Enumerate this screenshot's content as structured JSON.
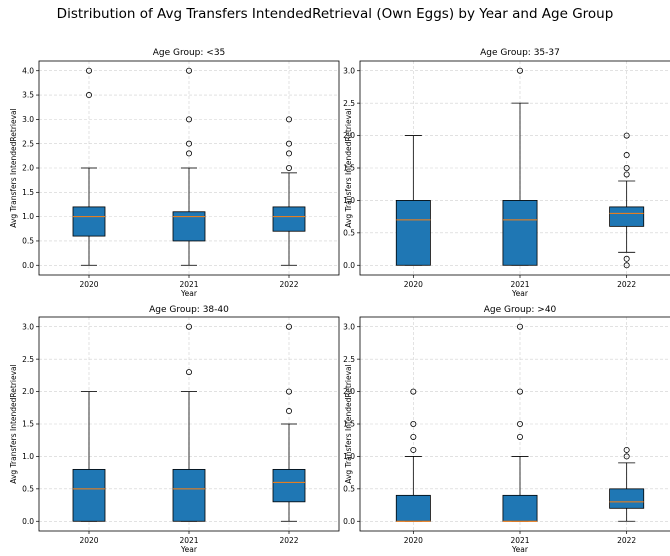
{
  "title": "Distribution of Avg Transfers IntendedRetrieval (Own Eggs) by Year and Age Group",
  "chart_data": [
    {
      "type": "box",
      "title": "Age Group: <35",
      "xlabel": "Year",
      "ylabel": "Avg Transfers IntendedRetrieval",
      "categories": [
        "2020",
        "2021",
        "2022"
      ],
      "ylim": [
        -0.2,
        4.2
      ],
      "yticks": [
        "0.0",
        "0.5",
        "1.0",
        "1.5",
        "2.0",
        "2.5",
        "3.0",
        "3.5",
        "4.0"
      ],
      "grid": true,
      "boxes": [
        {
          "whislo": 0.0,
          "q1": 0.6,
          "med": 1.0,
          "q3": 1.2,
          "whishi": 2.0,
          "fliers": [
            3.5,
            4.0
          ]
        },
        {
          "whislo": 0.0,
          "q1": 0.5,
          "med": 1.0,
          "q3": 1.1,
          "whishi": 2.0,
          "fliers": [
            2.3,
            2.5,
            3.0,
            4.0
          ]
        },
        {
          "whislo": 0.0,
          "q1": 0.7,
          "med": 1.0,
          "q3": 1.2,
          "whishi": 1.9,
          "fliers": [
            2.0,
            2.3,
            2.5,
            3.0
          ]
        }
      ]
    },
    {
      "type": "box",
      "title": "Age Group: 35-37",
      "xlabel": "Year",
      "ylabel": "Avg Transfers IntendedRetrieval",
      "categories": [
        "2020",
        "2021",
        "2022"
      ],
      "ylim": [
        -0.15,
        3.15
      ],
      "yticks": [
        "0.0",
        "0.5",
        "1.0",
        "1.5",
        "2.0",
        "2.5",
        "3.0"
      ],
      "grid": true,
      "boxes": [
        {
          "whislo": 0.0,
          "q1": 0.0,
          "med": 0.7,
          "q3": 1.0,
          "whishi": 2.0,
          "fliers": []
        },
        {
          "whislo": 0.0,
          "q1": 0.0,
          "med": 0.7,
          "q3": 1.0,
          "whishi": 2.5,
          "fliers": [
            3.0
          ]
        },
        {
          "whislo": 0.2,
          "q1": 0.6,
          "med": 0.8,
          "q3": 0.9,
          "whishi": 1.3,
          "fliers": [
            0.0,
            0.1,
            1.4,
            1.5,
            1.7,
            2.0
          ]
        }
      ]
    },
    {
      "type": "box",
      "title": "Age Group: 38-40",
      "xlabel": "Year",
      "ylabel": "Avg Transfers IntendedRetrieval",
      "categories": [
        "2020",
        "2021",
        "2022"
      ],
      "ylim": [
        -0.15,
        3.15
      ],
      "yticks": [
        "0.0",
        "0.5",
        "1.0",
        "1.5",
        "2.0",
        "2.5",
        "3.0"
      ],
      "grid": true,
      "boxes": [
        {
          "whislo": 0.0,
          "q1": 0.0,
          "med": 0.5,
          "q3": 0.8,
          "whishi": 2.0,
          "fliers": []
        },
        {
          "whislo": 0.0,
          "q1": 0.0,
          "med": 0.5,
          "q3": 0.8,
          "whishi": 2.0,
          "fliers": [
            2.3,
            3.0
          ]
        },
        {
          "whislo": 0.0,
          "q1": 0.3,
          "med": 0.6,
          "q3": 0.8,
          "whishi": 1.5,
          "fliers": [
            1.7,
            2.0,
            3.0
          ]
        }
      ]
    },
    {
      "type": "box",
      "title": "Age Group: >40",
      "xlabel": "Year",
      "ylabel": "Avg Transfers IntendedRetrieval",
      "categories": [
        "2020",
        "2021",
        "2022"
      ],
      "ylim": [
        -0.15,
        3.15
      ],
      "yticks": [
        "0.0",
        "0.5",
        "1.0",
        "1.5",
        "2.0",
        "2.5",
        "3.0"
      ],
      "grid": true,
      "boxes": [
        {
          "whislo": 0.0,
          "q1": 0.0,
          "med": 0.0,
          "q3": 0.4,
          "whishi": 1.0,
          "fliers": [
            1.1,
            1.3,
            1.5,
            2.0
          ]
        },
        {
          "whislo": 0.0,
          "q1": 0.0,
          "med": 0.0,
          "q3": 0.4,
          "whishi": 1.0,
          "fliers": [
            1.3,
            1.5,
            2.0,
            3.0
          ]
        },
        {
          "whislo": 0.0,
          "q1": 0.2,
          "med": 0.3,
          "q3": 0.5,
          "whishi": 0.9,
          "fliers": [
            1.0,
            1.1
          ]
        }
      ]
    }
  ],
  "colors": {
    "box_fill": "#1f77b4",
    "median": "#ff7f0e",
    "grid": "#d0d0d0"
  }
}
